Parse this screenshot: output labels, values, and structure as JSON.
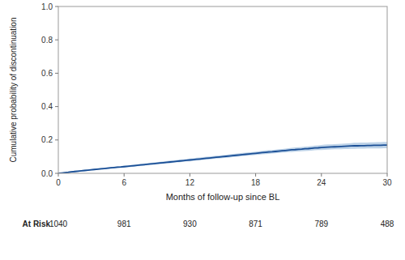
{
  "chart_data": {
    "type": "line",
    "xlabel": "Months of follow-up since BL",
    "ylabel": "Cumulative probability of discontinuation",
    "xlim": [
      0,
      30
    ],
    "ylim": [
      0.0,
      1.0
    ],
    "xticks": [
      0,
      6,
      12,
      18,
      24,
      30
    ],
    "yticks": [
      {
        "value": 0.0,
        "label": "0.0"
      },
      0.2,
      0.4,
      0.6,
      0.8,
      {
        "value": 1.0,
        "label": "1.0"
      }
    ],
    "grid": false,
    "x": [
      0,
      0.3,
      0.6,
      0.9,
      1.2,
      1.5,
      1.8,
      2.1,
      2.4,
      2.7,
      3.0,
      3.3,
      3.6,
      3.9,
      4.2,
      4.5,
      4.8,
      5.1,
      5.4,
      5.7,
      6.0,
      6.3,
      6.6,
      6.9,
      7.2,
      7.5,
      7.8,
      8.1,
      8.4,
      8.7,
      9.0,
      9.3,
      9.6,
      9.9,
      10.2,
      10.5,
      10.8,
      11.1,
      11.4,
      11.7,
      12.0,
      12.3,
      12.6,
      12.9,
      13.2,
      13.5,
      13.8,
      14.1,
      14.4,
      14.7,
      15.0,
      15.3,
      15.6,
      15.9,
      16.2,
      16.5,
      16.8,
      17.1,
      17.4,
      17.7,
      18.0,
      18.3,
      18.6,
      18.9,
      19.2,
      19.5,
      19.8,
      20.1,
      20.4,
      20.7,
      21.0,
      21.3,
      21.6,
      21.9,
      22.2,
      22.5,
      22.8,
      23.1,
      23.4,
      23.7,
      24.0,
      24.3,
      24.6,
      24.9,
      25.2,
      25.5,
      25.8,
      26.1,
      26.4,
      26.7,
      27.0,
      27.3,
      27.6,
      27.9,
      28.2,
      28.5,
      28.8,
      29.1,
      29.4,
      29.7,
      30.0
    ],
    "series": [
      {
        "type": "band",
        "color": "#a8c4e0",
        "lower": [
          0.0,
          0.001,
          0.002,
          0.003,
          0.005,
          0.007,
          0.009,
          0.011,
          0.013,
          0.015,
          0.017,
          0.019,
          0.021,
          0.022,
          0.024,
          0.026,
          0.028,
          0.03,
          0.031,
          0.033,
          0.034,
          0.036,
          0.038,
          0.04,
          0.042,
          0.044,
          0.046,
          0.048,
          0.05,
          0.052,
          0.053,
          0.055,
          0.057,
          0.059,
          0.061,
          0.063,
          0.065,
          0.067,
          0.069,
          0.071,
          0.072,
          0.074,
          0.076,
          0.078,
          0.08,
          0.082,
          0.084,
          0.086,
          0.088,
          0.09,
          0.091,
          0.093,
          0.095,
          0.097,
          0.099,
          0.101,
          0.103,
          0.105,
          0.107,
          0.108,
          0.11,
          0.112,
          0.114,
          0.115,
          0.117,
          0.119,
          0.12,
          0.122,
          0.124,
          0.125,
          0.127,
          0.128,
          0.13,
          0.131,
          0.132,
          0.134,
          0.135,
          0.136,
          0.138,
          0.139,
          0.14,
          0.141,
          0.142,
          0.143,
          0.144,
          0.144,
          0.145,
          0.146,
          0.146,
          0.147,
          0.147,
          0.148,
          0.148,
          0.148,
          0.149,
          0.149,
          0.149,
          0.149,
          0.149,
          0.15,
          0.15
        ],
        "upper": [
          0.0,
          0.004,
          0.007,
          0.01,
          0.013,
          0.016,
          0.018,
          0.02,
          0.022,
          0.024,
          0.026,
          0.028,
          0.03,
          0.032,
          0.034,
          0.036,
          0.038,
          0.04,
          0.043,
          0.044,
          0.046,
          0.048,
          0.05,
          0.053,
          0.055,
          0.057,
          0.059,
          0.061,
          0.063,
          0.065,
          0.067,
          0.069,
          0.072,
          0.074,
          0.076,
          0.078,
          0.08,
          0.082,
          0.084,
          0.086,
          0.088,
          0.09,
          0.093,
          0.095,
          0.097,
          0.099,
          0.101,
          0.103,
          0.105,
          0.107,
          0.109,
          0.111,
          0.114,
          0.116,
          0.118,
          0.12,
          0.122,
          0.124,
          0.126,
          0.128,
          0.13,
          0.132,
          0.135,
          0.137,
          0.139,
          0.14,
          0.142,
          0.144,
          0.146,
          0.148,
          0.151,
          0.153,
          0.155,
          0.157,
          0.158,
          0.16,
          0.162,
          0.164,
          0.166,
          0.168,
          0.17,
          0.172,
          0.173,
          0.174,
          0.175,
          0.176,
          0.177,
          0.179,
          0.18,
          0.181,
          0.183,
          0.183,
          0.184,
          0.184,
          0.185,
          0.186,
          0.186,
          0.187,
          0.187,
          0.188,
          0.188
        ]
      },
      {
        "type": "line",
        "color": "#1a4f96",
        "values": [
          0.0,
          0.002,
          0.004,
          0.006,
          0.009,
          0.011,
          0.013,
          0.015,
          0.017,
          0.019,
          0.021,
          0.023,
          0.025,
          0.027,
          0.029,
          0.031,
          0.033,
          0.035,
          0.037,
          0.038,
          0.04,
          0.042,
          0.044,
          0.046,
          0.048,
          0.05,
          0.052,
          0.054,
          0.056,
          0.058,
          0.06,
          0.062,
          0.064,
          0.066,
          0.068,
          0.07,
          0.072,
          0.074,
          0.076,
          0.078,
          0.08,
          0.082,
          0.084,
          0.086,
          0.088,
          0.09,
          0.092,
          0.094,
          0.096,
          0.098,
          0.1,
          0.102,
          0.104,
          0.106,
          0.108,
          0.11,
          0.112,
          0.114,
          0.116,
          0.118,
          0.12,
          0.122,
          0.124,
          0.126,
          0.128,
          0.129,
          0.131,
          0.133,
          0.135,
          0.137,
          0.139,
          0.141,
          0.142,
          0.144,
          0.145,
          0.147,
          0.148,
          0.15,
          0.152,
          0.153,
          0.155,
          0.156,
          0.157,
          0.158,
          0.159,
          0.16,
          0.161,
          0.162,
          0.163,
          0.164,
          0.165,
          0.165,
          0.166,
          0.166,
          0.167,
          0.167,
          0.168,
          0.168,
          0.168,
          0.169,
          0.169
        ]
      }
    ],
    "at_risk": {
      "label": "At Risk",
      "x": [
        0,
        6,
        12,
        18,
        24,
        30
      ],
      "values": [
        1040,
        981,
        930,
        871,
        789,
        488
      ]
    }
  }
}
